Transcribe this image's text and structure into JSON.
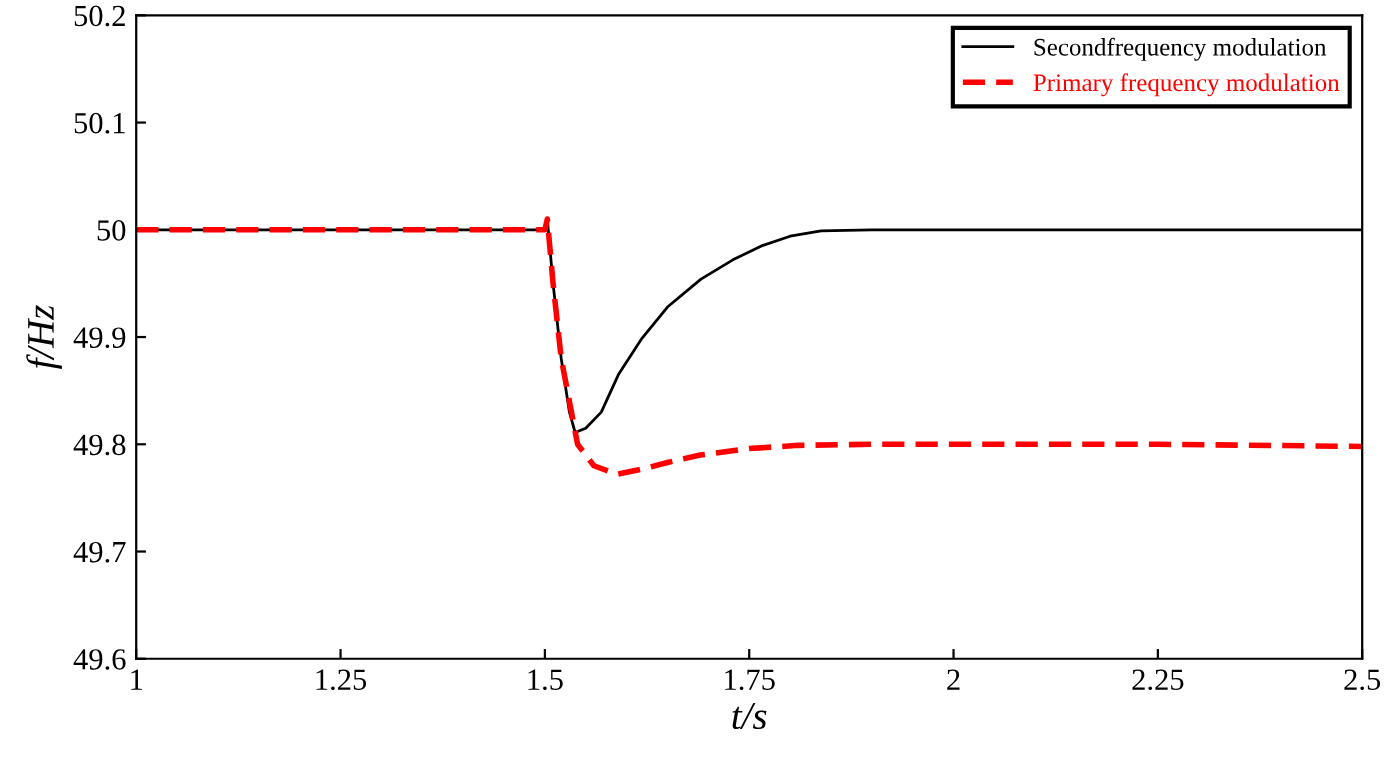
{
  "chart_data": {
    "type": "line",
    "xlabel": "t/s",
    "ylabel": "f/Hz",
    "xlim": [
      1,
      2.5
    ],
    "xticks": [
      1,
      1.25,
      1.5,
      1.75,
      2,
      2.25,
      2.5
    ],
    "ylim": [
      49.6,
      50.2
    ],
    "yticks": [
      49.6,
      49.7,
      49.8,
      49.9,
      50,
      50.1,
      50.2
    ],
    "grid": false,
    "legend": "top right",
    "series": [
      {
        "name": "Secondfrequency modulation",
        "color": "#000000",
        "line_style": "solid",
        "x": [
          1,
          1.5,
          1.503,
          1.51,
          1.52,
          1.53,
          1.537,
          1.55,
          1.569,
          1.59,
          1.618,
          1.65,
          1.691,
          1.73,
          1.765,
          1.8,
          1.838,
          1.9,
          2,
          2.25,
          2.5
        ],
        "values": [
          50,
          50,
          50.01,
          49.95,
          49.88,
          49.83,
          49.811,
          49.815,
          49.83,
          49.865,
          49.898,
          49.928,
          49.954,
          49.972,
          49.985,
          49.994,
          49.999,
          50,
          50,
          50,
          50
        ]
      },
      {
        "name": "Primary frequency modulation",
        "color": "#ff0000",
        "line_style": "dashed",
        "x": [
          1,
          1.5,
          1.503,
          1.51,
          1.52,
          1.54,
          1.56,
          1.588,
          1.62,
          1.65,
          1.69,
          1.75,
          1.81,
          1.9,
          2,
          2.25,
          2.5
        ],
        "values": [
          50,
          50,
          50.01,
          49.95,
          49.88,
          49.8,
          49.78,
          49.772,
          49.777,
          49.783,
          49.79,
          49.796,
          49.799,
          49.8,
          49.8,
          49.8,
          49.798
        ]
      }
    ]
  }
}
